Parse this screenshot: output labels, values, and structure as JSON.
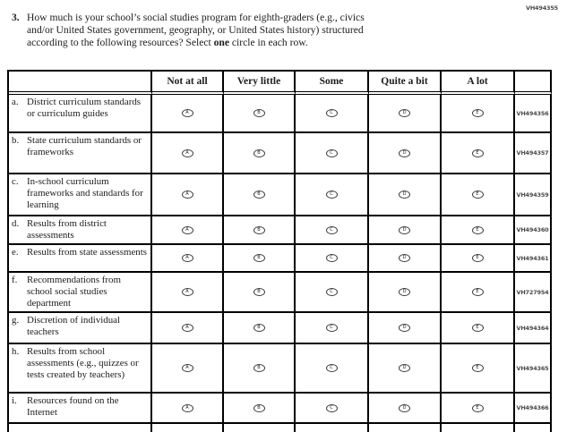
{
  "page_code": "VH494355",
  "question": {
    "number": "3.",
    "line1": "How much is your school’s social studies program for eighth-graders (e.g., civics",
    "line2": "and/or United States government, geography, or United States history) structured",
    "line3_before": "according to the following resources? Select ",
    "line3_bold": "one",
    "line3_after": " circle in each row."
  },
  "table": {
    "column_headers": [
      "Not at all",
      "Very little",
      "Some",
      "Quite a bit",
      "A lot"
    ],
    "option_letters": [
      "A",
      "B",
      "C",
      "D",
      "E"
    ],
    "rows": [
      {
        "letter": "a.",
        "label": "District curriculum standards or curriculum guides",
        "code": "VH494356"
      },
      {
        "letter": "b.",
        "label": "State curriculum standards or frameworks",
        "code": "VH494357"
      },
      {
        "letter": "c.",
        "label": "In-school curriculum frameworks and standards for learning",
        "code": "VH494359"
      },
      {
        "letter": "d.",
        "label": "Results from district assessments",
        "code": "VH494360"
      },
      {
        "letter": "e.",
        "label": "Results from state assessments",
        "code": "VH494361"
      },
      {
        "letter": "f.",
        "label": "Recommendations from school social studies department",
        "code": "VH727954"
      },
      {
        "letter": "g.",
        "label": "Discretion of individual teachers",
        "code": "VH494364"
      },
      {
        "letter": "h.",
        "label": "Results from school assessments (e.g., quizzes or tests created by teachers)",
        "code": "VH494365"
      },
      {
        "letter": "i.",
        "label": "Resources found on the Internet",
        "code": "VH494366"
      }
    ]
  },
  "colors": {
    "background": "#ffffff",
    "text": "#1c1c1c",
    "border": "#000000",
    "code_text": "#4a4a4a"
  }
}
